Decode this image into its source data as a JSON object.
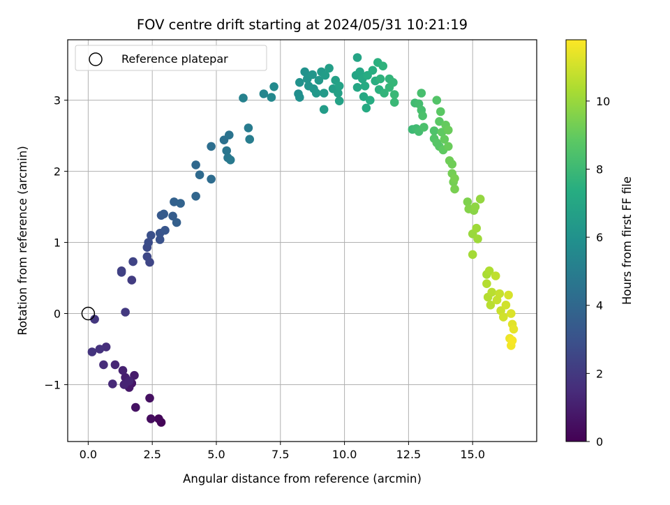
{
  "chart_data": {
    "type": "scatter",
    "title": "FOV centre drift starting at 2024/05/31 10:21:19",
    "xlabel": "Angular distance from reference (arcmin)",
    "ylabel": "Rotation from reference (arcmin)",
    "colorbar_label": "Hours from first FF file",
    "xlim": [
      -0.8,
      17.5
    ],
    "ylim": [
      -1.8,
      3.85
    ],
    "x_ticks": [
      0.0,
      2.5,
      5.0,
      7.5,
      10.0,
      12.5,
      15.0
    ],
    "x_tick_labels": [
      "0.0",
      "2.5",
      "5.0",
      "7.5",
      "10.0",
      "12.5",
      "15.0"
    ],
    "y_ticks": [
      -1,
      0,
      1,
      2,
      3
    ],
    "y_tick_labels": [
      "−1",
      "0",
      "1",
      "2",
      "3"
    ],
    "colorbar_range": [
      0,
      11.8
    ],
    "colorbar_ticks": [
      0,
      2,
      4,
      6,
      8,
      10
    ],
    "colorbar_tick_labels": [
      "0",
      "2",
      "4",
      "6",
      "8",
      "10"
    ],
    "colormap": "viridis",
    "grid": true,
    "legend": {
      "location": "upper-left",
      "entries": [
        {
          "label": "Reference platepar",
          "marker": "open-circle"
        }
      ]
    },
    "reference_point": {
      "x": 0.0,
      "y": 0.0
    },
    "points": [
      {
        "x": 2.85,
        "y": -1.53,
        "h": 0.1
      },
      {
        "x": 2.75,
        "y": -1.48,
        "h": 0.2
      },
      {
        "x": 2.45,
        "y": -1.48,
        "h": 0.4
      },
      {
        "x": 2.4,
        "y": -1.19,
        "h": 0.5
      },
      {
        "x": 1.85,
        "y": -1.32,
        "h": 0.6
      },
      {
        "x": 1.7,
        "y": -0.98,
        "h": 0.7
      },
      {
        "x": 1.6,
        "y": -1.04,
        "h": 0.8
      },
      {
        "x": 1.8,
        "y": -0.87,
        "h": 0.9
      },
      {
        "x": 1.45,
        "y": -0.9,
        "h": 1.0
      },
      {
        "x": 1.35,
        "y": -0.8,
        "h": 1.1
      },
      {
        "x": 1.6,
        "y": -0.95,
        "h": 1.2
      },
      {
        "x": 1.4,
        "y": -1.0,
        "h": 1.2
      },
      {
        "x": 1.05,
        "y": -0.72,
        "h": 1.3
      },
      {
        "x": 0.95,
        "y": -0.99,
        "h": 1.4
      },
      {
        "x": 0.6,
        "y": -0.72,
        "h": 1.5
      },
      {
        "x": 0.7,
        "y": -0.47,
        "h": 1.6
      },
      {
        "x": 0.45,
        "y": -0.5,
        "h": 1.7
      },
      {
        "x": 0.15,
        "y": -0.54,
        "h": 1.8
      },
      {
        "x": 0.25,
        "y": -0.08,
        "h": 1.9
      },
      {
        "x": 1.45,
        "y": 0.02,
        "h": 2.0
      },
      {
        "x": 1.7,
        "y": 0.47,
        "h": 2.1
      },
      {
        "x": 1.3,
        "y": 0.6,
        "h": 2.2
      },
      {
        "x": 1.3,
        "y": 0.58,
        "h": 2.3
      },
      {
        "x": 1.75,
        "y": 0.73,
        "h": 2.4
      },
      {
        "x": 2.4,
        "y": 0.72,
        "h": 2.5
      },
      {
        "x": 2.3,
        "y": 0.8,
        "h": 2.6
      },
      {
        "x": 2.3,
        "y": 0.93,
        "h": 2.7
      },
      {
        "x": 2.35,
        "y": 1.0,
        "h": 2.8
      },
      {
        "x": 2.45,
        "y": 1.1,
        "h": 2.9
      },
      {
        "x": 2.8,
        "y": 1.04,
        "h": 3.0
      },
      {
        "x": 2.8,
        "y": 1.13,
        "h": 3.1
      },
      {
        "x": 3.0,
        "y": 1.17,
        "h": 3.2
      },
      {
        "x": 2.85,
        "y": 1.38,
        "h": 3.3
      },
      {
        "x": 2.95,
        "y": 1.4,
        "h": 3.4
      },
      {
        "x": 3.3,
        "y": 1.37,
        "h": 3.5
      },
      {
        "x": 3.45,
        "y": 1.28,
        "h": 3.6
      },
      {
        "x": 3.35,
        "y": 1.57,
        "h": 3.7
      },
      {
        "x": 3.6,
        "y": 1.55,
        "h": 3.8
      },
      {
        "x": 4.2,
        "y": 1.65,
        "h": 3.9
      },
      {
        "x": 4.2,
        "y": 2.09,
        "h": 4.0
      },
      {
        "x": 4.35,
        "y": 1.95,
        "h": 4.1
      },
      {
        "x": 4.8,
        "y": 1.89,
        "h": 4.2
      },
      {
        "x": 4.8,
        "y": 2.35,
        "h": 4.3
      },
      {
        "x": 5.3,
        "y": 2.44,
        "h": 4.4
      },
      {
        "x": 5.5,
        "y": 2.51,
        "h": 4.5
      },
      {
        "x": 5.4,
        "y": 2.29,
        "h": 4.6
      },
      {
        "x": 5.45,
        "y": 2.19,
        "h": 4.7
      },
      {
        "x": 5.55,
        "y": 2.16,
        "h": 4.8
      },
      {
        "x": 6.25,
        "y": 2.61,
        "h": 4.9
      },
      {
        "x": 6.3,
        "y": 2.45,
        "h": 5.0
      },
      {
        "x": 6.05,
        "y": 3.03,
        "h": 5.2
      },
      {
        "x": 6.85,
        "y": 3.09,
        "h": 5.4
      },
      {
        "x": 7.15,
        "y": 3.04,
        "h": 5.5
      },
      {
        "x": 7.25,
        "y": 3.19,
        "h": 5.6
      },
      {
        "x": 8.2,
        "y": 3.09,
        "h": 5.8
      },
      {
        "x": 8.25,
        "y": 3.04,
        "h": 5.9
      },
      {
        "x": 8.25,
        "y": 3.25,
        "h": 6.0
      },
      {
        "x": 8.45,
        "y": 3.4,
        "h": 6.0
      },
      {
        "x": 8.55,
        "y": 3.3,
        "h": 6.1
      },
      {
        "x": 8.6,
        "y": 3.2,
        "h": 6.1
      },
      {
        "x": 8.75,
        "y": 3.36,
        "h": 6.2
      },
      {
        "x": 8.8,
        "y": 3.16,
        "h": 6.2
      },
      {
        "x": 8.9,
        "y": 3.1,
        "h": 6.3
      },
      {
        "x": 9.0,
        "y": 3.28,
        "h": 6.3
      },
      {
        "x": 9.1,
        "y": 3.4,
        "h": 6.4
      },
      {
        "x": 9.2,
        "y": 3.1,
        "h": 6.4
      },
      {
        "x": 9.25,
        "y": 3.35,
        "h": 6.5
      },
      {
        "x": 9.2,
        "y": 2.87,
        "h": 6.5
      },
      {
        "x": 9.4,
        "y": 3.45,
        "h": 6.6
      },
      {
        "x": 9.55,
        "y": 3.16,
        "h": 6.6
      },
      {
        "x": 9.65,
        "y": 3.28,
        "h": 6.7
      },
      {
        "x": 9.75,
        "y": 3.1,
        "h": 6.7
      },
      {
        "x": 9.8,
        "y": 3.2,
        "h": 6.8
      },
      {
        "x": 9.8,
        "y": 2.99,
        "h": 6.8
      },
      {
        "x": 10.45,
        "y": 3.35,
        "h": 6.9
      },
      {
        "x": 10.5,
        "y": 3.6,
        "h": 6.9
      },
      {
        "x": 10.5,
        "y": 3.18,
        "h": 7.0
      },
      {
        "x": 10.6,
        "y": 3.4,
        "h": 7.0
      },
      {
        "x": 10.7,
        "y": 3.3,
        "h": 7.1
      },
      {
        "x": 10.75,
        "y": 3.05,
        "h": 7.1
      },
      {
        "x": 10.8,
        "y": 3.2,
        "h": 7.2
      },
      {
        "x": 10.85,
        "y": 2.89,
        "h": 7.2
      },
      {
        "x": 10.9,
        "y": 3.35,
        "h": 7.3
      },
      {
        "x": 11.0,
        "y": 3.0,
        "h": 7.3
      },
      {
        "x": 11.1,
        "y": 3.42,
        "h": 7.4
      },
      {
        "x": 11.2,
        "y": 3.27,
        "h": 7.4
      },
      {
        "x": 11.3,
        "y": 3.53,
        "h": 7.5
      },
      {
        "x": 11.35,
        "y": 3.15,
        "h": 7.5
      },
      {
        "x": 11.4,
        "y": 3.3,
        "h": 7.6
      },
      {
        "x": 11.5,
        "y": 3.48,
        "h": 7.6
      },
      {
        "x": 11.55,
        "y": 3.1,
        "h": 7.7
      },
      {
        "x": 11.75,
        "y": 3.3,
        "h": 7.7
      },
      {
        "x": 11.75,
        "y": 3.18,
        "h": 7.8
      },
      {
        "x": 11.9,
        "y": 3.25,
        "h": 7.8
      },
      {
        "x": 11.95,
        "y": 3.08,
        "h": 7.9
      },
      {
        "x": 11.95,
        "y": 2.97,
        "h": 7.9
      },
      {
        "x": 12.65,
        "y": 2.59,
        "h": 8.0
      },
      {
        "x": 12.8,
        "y": 2.6,
        "h": 8.1
      },
      {
        "x": 12.75,
        "y": 2.96,
        "h": 8.1
      },
      {
        "x": 12.9,
        "y": 2.95,
        "h": 8.2
      },
      {
        "x": 12.9,
        "y": 2.56,
        "h": 8.2
      },
      {
        "x": 13.0,
        "y": 2.86,
        "h": 8.3
      },
      {
        "x": 13.0,
        "y": 3.1,
        "h": 8.3
      },
      {
        "x": 13.05,
        "y": 2.78,
        "h": 8.4
      },
      {
        "x": 13.1,
        "y": 2.62,
        "h": 8.4
      },
      {
        "x": 13.5,
        "y": 2.57,
        "h": 8.5
      },
      {
        "x": 13.5,
        "y": 2.46,
        "h": 8.6
      },
      {
        "x": 13.6,
        "y": 3.0,
        "h": 8.6
      },
      {
        "x": 13.6,
        "y": 2.4,
        "h": 8.7
      },
      {
        "x": 13.7,
        "y": 2.35,
        "h": 8.7
      },
      {
        "x": 13.7,
        "y": 2.7,
        "h": 8.8
      },
      {
        "x": 13.75,
        "y": 2.84,
        "h": 8.8
      },
      {
        "x": 13.8,
        "y": 2.55,
        "h": 8.9
      },
      {
        "x": 13.85,
        "y": 2.3,
        "h": 8.9
      },
      {
        "x": 13.9,
        "y": 2.45,
        "h": 9.0
      },
      {
        "x": 13.95,
        "y": 2.65,
        "h": 9.0
      },
      {
        "x": 14.05,
        "y": 2.58,
        "h": 9.1
      },
      {
        "x": 14.05,
        "y": 2.35,
        "h": 9.1
      },
      {
        "x": 14.1,
        "y": 2.15,
        "h": 9.2
      },
      {
        "x": 14.2,
        "y": 2.1,
        "h": 9.2
      },
      {
        "x": 14.2,
        "y": 1.97,
        "h": 9.3
      },
      {
        "x": 14.25,
        "y": 1.85,
        "h": 9.3
      },
      {
        "x": 14.3,
        "y": 1.75,
        "h": 9.4
      },
      {
        "x": 14.3,
        "y": 1.9,
        "h": 9.4
      },
      {
        "x": 14.8,
        "y": 1.57,
        "h": 9.5
      },
      {
        "x": 14.85,
        "y": 1.47,
        "h": 9.6
      },
      {
        "x": 15.05,
        "y": 1.45,
        "h": 9.7
      },
      {
        "x": 15.1,
        "y": 1.5,
        "h": 9.8
      },
      {
        "x": 15.3,
        "y": 1.61,
        "h": 9.9
      },
      {
        "x": 15.0,
        "y": 1.12,
        "h": 10.0
      },
      {
        "x": 15.15,
        "y": 1.2,
        "h": 10.1
      },
      {
        "x": 15.2,
        "y": 1.05,
        "h": 10.1
      },
      {
        "x": 15.0,
        "y": 0.83,
        "h": 10.2
      },
      {
        "x": 15.55,
        "y": 0.55,
        "h": 10.3
      },
      {
        "x": 15.65,
        "y": 0.6,
        "h": 10.4
      },
      {
        "x": 15.55,
        "y": 0.42,
        "h": 10.5
      },
      {
        "x": 15.6,
        "y": 0.23,
        "h": 10.5
      },
      {
        "x": 15.7,
        "y": 0.12,
        "h": 10.6
      },
      {
        "x": 15.75,
        "y": 0.3,
        "h": 10.6
      },
      {
        "x": 15.9,
        "y": 0.53,
        "h": 10.7
      },
      {
        "x": 15.95,
        "y": 0.19,
        "h": 10.8
      },
      {
        "x": 16.05,
        "y": 0.28,
        "h": 10.8
      },
      {
        "x": 16.1,
        "y": 0.04,
        "h": 10.9
      },
      {
        "x": 16.2,
        "y": -0.05,
        "h": 11.0
      },
      {
        "x": 16.3,
        "y": 0.12,
        "h": 11.0
      },
      {
        "x": 16.4,
        "y": 0.26,
        "h": 11.1
      },
      {
        "x": 16.5,
        "y": 0.0,
        "h": 11.2
      },
      {
        "x": 16.55,
        "y": -0.15,
        "h": 11.3
      },
      {
        "x": 16.6,
        "y": -0.22,
        "h": 11.4
      },
      {
        "x": 16.45,
        "y": -0.35,
        "h": 11.5
      },
      {
        "x": 16.5,
        "y": -0.45,
        "h": 11.6
      },
      {
        "x": 16.55,
        "y": -0.38,
        "h": 11.7
      }
    ]
  }
}
